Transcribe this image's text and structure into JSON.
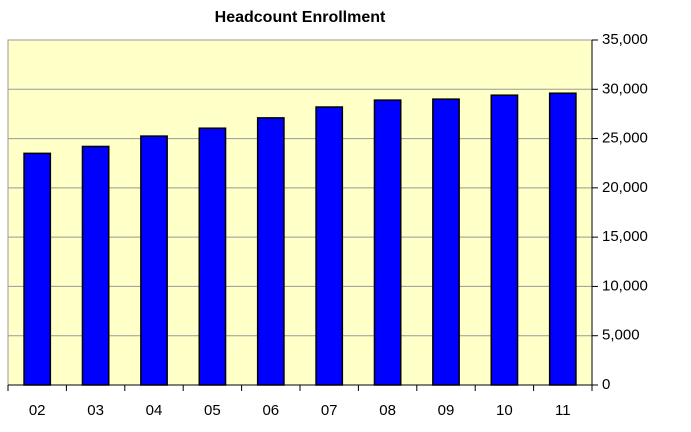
{
  "chart_data": {
    "type": "bar",
    "title": "Headcount Enrollment",
    "categories": [
      "02",
      "03",
      "04",
      "05",
      "06",
      "07",
      "08",
      "09",
      "10",
      "11"
    ],
    "values": [
      23500,
      24200,
      25250,
      26050,
      27100,
      28200,
      28900,
      29000,
      29400,
      29600
    ],
    "color": "#0000ff",
    "ylim": [
      0,
      35000
    ],
    "yticks": [
      0,
      {
        "value": 5000,
        "label": "5,000"
      },
      {
        "value": 10000,
        "label": "10,000"
      },
      {
        "value": 15000,
        "label": "15,000"
      },
      {
        "value": 20000,
        "label": "20,000"
      },
      {
        "value": 25000,
        "label": "25,000"
      },
      {
        "value": 30000,
        "label": "30,000"
      },
      {
        "value": 35000,
        "label": "35,000"
      }
    ],
    "grid": true
  }
}
